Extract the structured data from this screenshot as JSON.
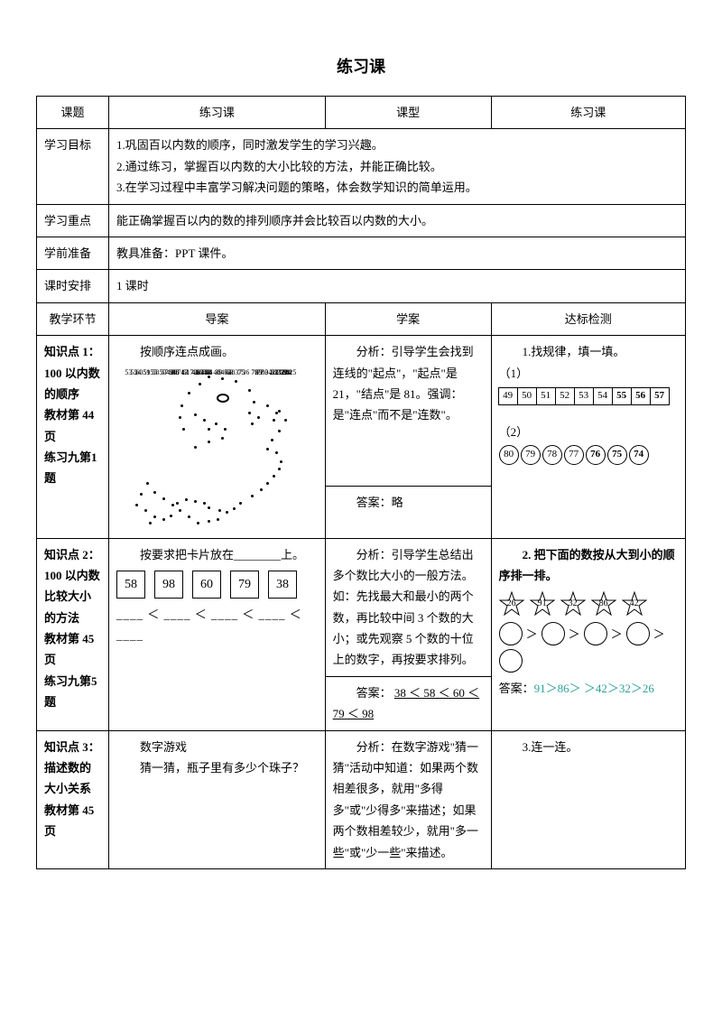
{
  "title": "练习课",
  "headers": {
    "topic": "课题",
    "topic_val": "练习课",
    "type": "课型",
    "type_val": "练习课",
    "goal": "学习目标",
    "goal_lines": [
      "1.巩固百以内数的顺序，同时激发学生的学习兴趣。",
      "2.通过练习，掌握百以内数的大小比较的方法，并能正确比较。",
      "3.在学习过程中丰富学习解决问题的策略，体会数学知识的简单运用。"
    ],
    "key": "学习重点",
    "key_val": "能正确掌握百以内的数的排列顺序并会比较百以内数的大小。",
    "prep": "学前准备",
    "prep_val": "教具准备：PPT 课件。",
    "sched": "课时安排",
    "sched_val": "1 课时",
    "stage": "教学环节",
    "guide": "导案",
    "study": "学案",
    "check": "达标检测"
  },
  "row1": {
    "label_l1": "知识点 1：",
    "label_l2": "100 以内数的顺序",
    "label_l3": "教材第 44页",
    "label_l4": "练习九第1 题",
    "guide": "按顺序连点成画。",
    "study_analysis": "分析：引导学生会找到连线的\"起点\"，\"起点\"是 21，\"结点\"是 81。强调：是\"连点\"而不是\"连数\"。",
    "study_answer": "答案：略",
    "check_title": "1.找规律，填一填。",
    "check_p1": "（1）",
    "seq1": [
      "49",
      "50",
      "51",
      "52",
      "53",
      "54",
      "55",
      "56",
      "57"
    ],
    "seq1_bold_from": 6,
    "check_p2": "（2）",
    "seq2": [
      "80",
      "79",
      "78",
      "77",
      "76",
      "75",
      "74"
    ],
    "seq2_bold_from": 4
  },
  "row2": {
    "label_l1": "知识点 2：",
    "label_l2": "100 以内数比较大小的方法",
    "label_l3": "教材第 45页",
    "label_l4": "练习九第5 题",
    "guide_text": "按要求把卡片放在________上。",
    "cards": [
      "58",
      "98",
      "60",
      "79",
      "38"
    ],
    "blanks": "____ ＜ ____ ＜ ____ ＜ ____ ＜ ____",
    "study_analysis": "分析：引导学生总结出多个数比大小的一般方法。如：先找最大和最小的两个数，再比较中间 3 个数的大小；或先观察 5 个数的十位上的数字，再按要求排列。",
    "study_answer_label": "答案：",
    "study_answer": "38 ＜ 58 ＜ 60 ＜ 79 ＜ 98",
    "check_title": "2. 把下面的数按从大到小的顺序排一排。",
    "stars": [
      "26",
      "91",
      "32",
      "86",
      "42"
    ],
    "check_answer_label": "答案：",
    "check_answer": "91＞86＞ ＞42＞32＞26"
  },
  "row3": {
    "label_l1": "知识点 3：",
    "label_l2": "描述数的大小关系",
    "label_l3": "教材第 45页",
    "guide_l1": "数字游戏",
    "guide_l2": "猜一猜，瓶子里有多少个珠子？",
    "study_analysis": "分析：在数字游戏\"猜一猜\"活动中知道：如果两个数相差很多，就用\"多得多\"或\"少得多\"来描述；如果两个数相差较少，就用\"多一些\"或\"少一些\"来描述。",
    "check_title": "3.连一连。"
  }
}
